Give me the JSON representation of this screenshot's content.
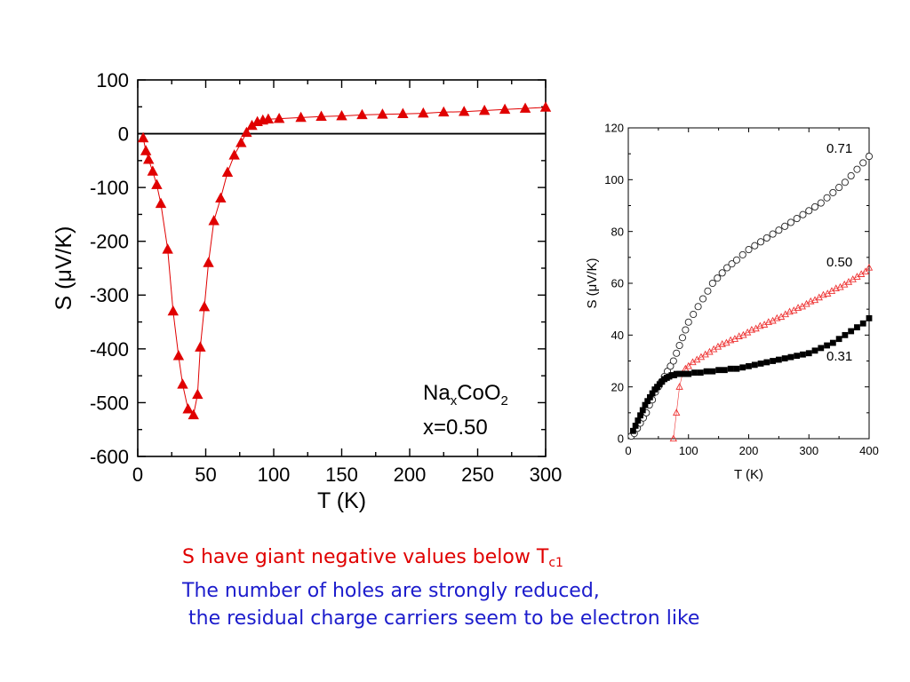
{
  "chart_data": [
    {
      "type": "line",
      "title": "",
      "xlabel": "T (K)",
      "ylabel": "S (μV/K)",
      "xlim": [
        0,
        300
      ],
      "ylim": [
        -600,
        100
      ],
      "xticks": [
        0,
        50,
        100,
        150,
        200,
        250,
        300
      ],
      "yticks": [
        -600,
        -500,
        -400,
        -300,
        -200,
        -100,
        0,
        100
      ],
      "grid": false,
      "reference_line_y": 0,
      "annotation": {
        "base": "Na",
        "sub1": "x",
        "mid": "CoO",
        "sub2": "2",
        "line2": "x=0.50"
      },
      "series": [
        {
          "marker": "filled-triangle",
          "color": "#e00000",
          "x": [
            4,
            6,
            8,
            11,
            14,
            17,
            22,
            26,
            30,
            33,
            37,
            41,
            44,
            46,
            49,
            52,
            56,
            61,
            66,
            71,
            76,
            80,
            84,
            88,
            92,
            96,
            104,
            120,
            135,
            150,
            165,
            180,
            195,
            210,
            225,
            240,
            255,
            270,
            285,
            300
          ],
          "y": [
            -8,
            -32,
            -48,
            -70,
            -95,
            -130,
            -215,
            -330,
            -413,
            -466,
            -512,
            -523,
            -485,
            -397,
            -322,
            -240,
            -162,
            -120,
            -72,
            -40,
            -17,
            2,
            15,
            22,
            25,
            27,
            28,
            30,
            32,
            33,
            35,
            36,
            37,
            38,
            40,
            41,
            43,
            45,
            47,
            49
          ]
        }
      ]
    },
    {
      "type": "scatter",
      "title": "",
      "xlabel": "T (K)",
      "ylabel": "S (μV/K)",
      "xlim": [
        0,
        400
      ],
      "ylim": [
        0,
        120
      ],
      "xticks": [
        0,
        100,
        200,
        300,
        400
      ],
      "yticks": [
        0,
        20,
        40,
        60,
        80,
        100,
        120
      ],
      "grid": false,
      "series": [
        {
          "name": "0.71",
          "marker": "open-circle",
          "color": "#222222",
          "x": [
            5,
            10,
            15,
            20,
            25,
            30,
            35,
            40,
            45,
            50,
            55,
            60,
            65,
            70,
            75,
            80,
            85,
            90,
            95,
            100,
            108,
            116,
            124,
            132,
            140,
            148,
            156,
            164,
            172,
            180,
            190,
            200,
            210,
            220,
            230,
            240,
            250,
            260,
            270,
            280,
            290,
            300,
            310,
            320,
            330,
            340,
            350,
            360,
            370,
            380,
            390,
            400
          ],
          "y": [
            1,
            2,
            4,
            6,
            8,
            10,
            13,
            15,
            18,
            20,
            22,
            24,
            26,
            28,
            30,
            33,
            36,
            39,
            42,
            45,
            48,
            51,
            54,
            57,
            60,
            62,
            64,
            66,
            67.5,
            69,
            71,
            73,
            74.5,
            76,
            77.5,
            79,
            80.5,
            82,
            83.5,
            85,
            86.5,
            88,
            89.5,
            91,
            93,
            95,
            97,
            99,
            101.5,
            104,
            106.5,
            109
          ]
        },
        {
          "name": "0.50",
          "marker": "open-triangle",
          "color": "#ee3333",
          "x": [
            75,
            80,
            85,
            90,
            95,
            100,
            107,
            114,
            121,
            128,
            135,
            142,
            149,
            156,
            163,
            170,
            177,
            184,
            191,
            198,
            205,
            212,
            219,
            226,
            233,
            240,
            247,
            254,
            261,
            268,
            275,
            282,
            289,
            296,
            303,
            310,
            317,
            324,
            331,
            338,
            345,
            352,
            359,
            366,
            373,
            380,
            387,
            394,
            400
          ],
          "y": [
            0,
            10,
            20,
            25,
            27,
            28,
            29.5,
            30.5,
            31.5,
            32.5,
            33.5,
            34.5,
            35.5,
            36.5,
            37,
            38,
            38.5,
            39.5,
            40,
            41,
            42,
            42.5,
            43.5,
            44,
            45,
            45.5,
            46.5,
            47,
            48,
            49,
            49.5,
            50.5,
            51,
            52,
            53,
            53.5,
            54.5,
            55.5,
            56,
            57,
            58,
            58.5,
            59.5,
            60.5,
            61.5,
            62.5,
            63.5,
            64.5,
            66
          ]
        },
        {
          "name": "0.31",
          "marker": "filled-square",
          "color": "#000000",
          "x": [
            8,
            12,
            16,
            20,
            24,
            28,
            32,
            36,
            40,
            44,
            48,
            52,
            56,
            60,
            64,
            68,
            72,
            76,
            80,
            85,
            90,
            95,
            100,
            110,
            120,
            130,
            140,
            150,
            160,
            170,
            180,
            190,
            200,
            210,
            220,
            230,
            240,
            250,
            260,
            270,
            280,
            290,
            300,
            310,
            320,
            330,
            340,
            350,
            360,
            370,
            380,
            390,
            400
          ],
          "y": [
            3,
            5,
            7,
            9,
            11,
            13,
            14.5,
            16,
            17.5,
            19,
            20,
            21,
            22,
            23,
            23.5,
            24,
            24.5,
            24.5,
            25,
            25,
            25,
            25,
            25,
            25.5,
            25.5,
            26,
            26,
            26.5,
            26.5,
            27,
            27,
            27.5,
            28,
            28.5,
            29,
            29.5,
            30,
            30.5,
            31,
            31.5,
            32,
            32.5,
            33,
            34,
            35,
            36,
            37,
            38.5,
            40,
            41.5,
            43,
            44.5,
            46.5
          ]
        }
      ]
    }
  ],
  "caption": {
    "line1_text": "S have giant negative values below T",
    "line1_sub": "c1",
    "line2": "The number of holes are strongly reduced,",
    "line3": " the residual charge carriers seem to be electron like"
  },
  "colors": {
    "caption_red": "#e00000",
    "caption_blue": "#1c1ccc"
  }
}
